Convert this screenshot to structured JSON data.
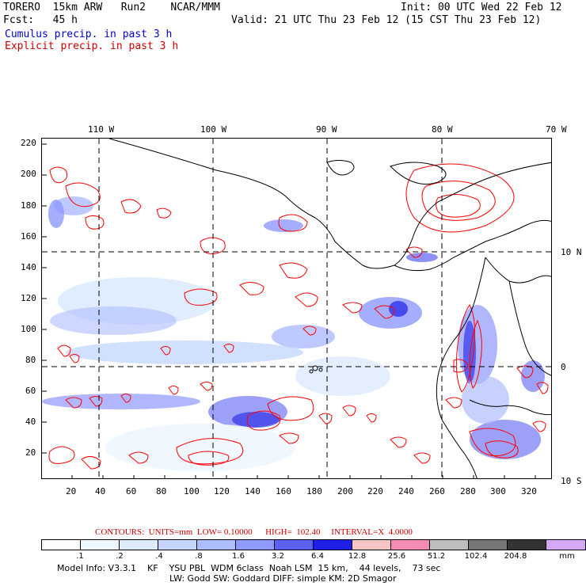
{
  "header": {
    "line1_left": "TORERO  15km ARW   Run2    NCAR/MMM",
    "line1_right": "Init: 00 UTC Wed 22 Feb 12",
    "line2_left": "Fcst:   45 h",
    "line2_right": "Valid: 21 UTC Thu 23 Feb 12 (15 CST Thu 23 Feb 12)",
    "line3": "Cumulus precip. in past 3 h",
    "line4": "Explicit precip. in past 3 h"
  },
  "colors": {
    "cumulus_label": "#0000cc",
    "explicit_label": "#cc0000",
    "contour": "#ff0000",
    "coast": "#000000"
  },
  "map": {
    "lon_labels": [
      "110 W",
      "100 W",
      "90 W",
      "80 W",
      "70 W"
    ],
    "lat_labels": [
      "10 N",
      "0",
      "10 S"
    ],
    "y_ticks": [
      "220",
      "200",
      "180",
      "160",
      "140",
      "120",
      "100",
      "80",
      "60",
      "40",
      "20"
    ],
    "x_ticks": [
      "20",
      "40",
      "60",
      "80",
      "100",
      "120",
      "140",
      "160",
      "180",
      "200",
      "220",
      "240",
      "260",
      "280",
      "300",
      "320"
    ]
  },
  "contours_info": {
    "text": "CONTOURS:  UNITS=mm  LOW= 0.10000      HIGH=  102.40     INTERVAL=X  4.0000"
  },
  "legend": {
    "colors": [
      "#ffffff",
      "#eef6ff",
      "#dcebff",
      "#c6d8ff",
      "#aebdff",
      "#8f99ff",
      "#5c61f2",
      "#1f1fe6",
      "#f5c6c6",
      "#f28cb5",
      "#bdbdbd",
      "#757575",
      "#333333",
      "#d8a8f8"
    ],
    "labels": [
      ".1",
      ".2",
      ".4",
      ".8",
      "1.6",
      "3.2",
      "6.4",
      "12.8",
      "25.6",
      "51.2",
      "102.4",
      "204.8"
    ],
    "units": "mm"
  },
  "footer": {
    "line1": "Model Info: V3.3.1    KF    YSU PBL  WDM 6class  Noah LSM  15 km,    44 levels,    73 sec",
    "line2": "LW: Godd SW: Goddard DIFF: simple KM: 2D Smagor"
  }
}
